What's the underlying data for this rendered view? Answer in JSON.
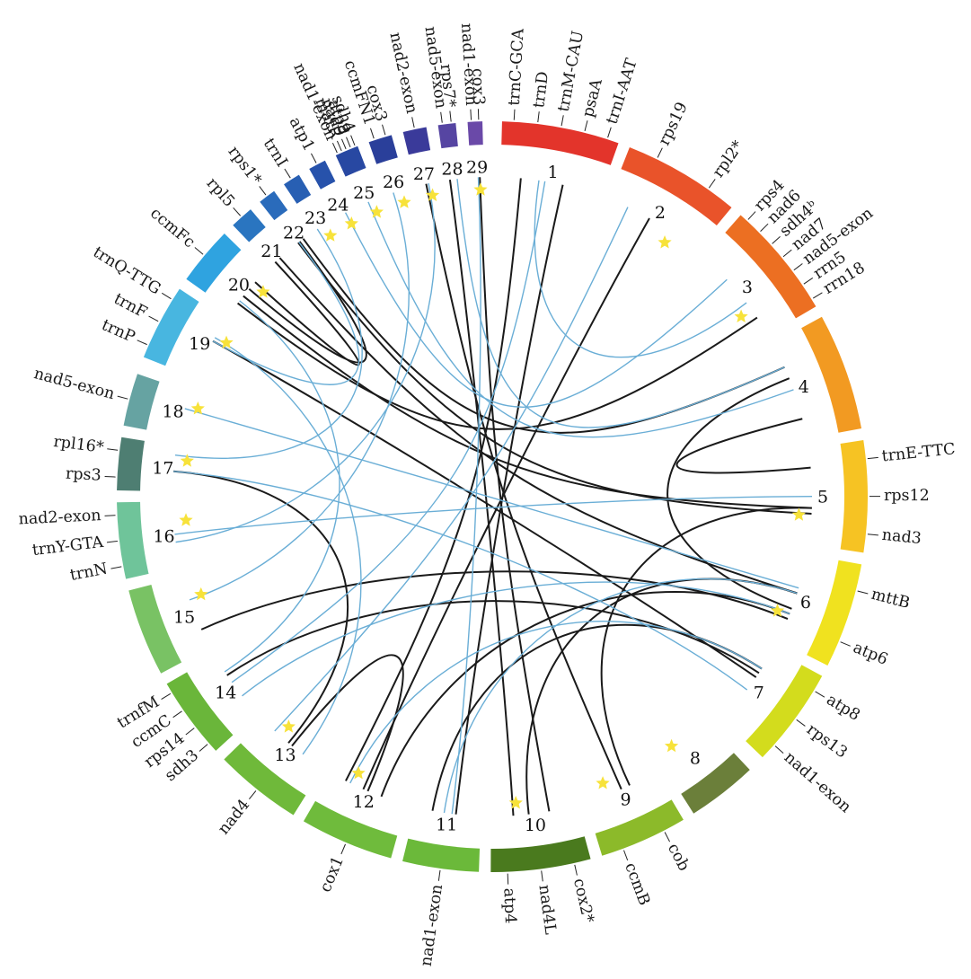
{
  "segments": [
    {
      "num": "1",
      "color": "#e3342b",
      "star": false,
      "genes": [
        {
          "text": "trnC-GCA"
        },
        {
          "text": "trnD"
        },
        {
          "text": "trnM-CAU"
        },
        {
          "text": "psaA"
        },
        {
          "text": "trnI-AAT"
        }
      ]
    },
    {
      "num": "2",
      "color": "#e9532a",
      "star": true,
      "genes": [
        {
          "text": "rps19"
        },
        {
          "text": "rpl2*"
        }
      ]
    },
    {
      "num": "3",
      "color": "#ec6f22",
      "star": true,
      "genes": [
        {
          "text": "rps4"
        },
        {
          "text": "nad6"
        },
        {
          "text": "sdh4ᵇ"
        },
        {
          "text": "nad7"
        },
        {
          "text": "nad5-exon"
        },
        {
          "text": "rrn5"
        },
        {
          "text": "rrn18"
        }
      ]
    },
    {
      "num": "4",
      "color": "#f29a22",
      "star": false,
      "genes": []
    },
    {
      "num": "5",
      "color": "#f6c323",
      "star": true,
      "genes": [
        {
          "text": "trnE-TTC"
        },
        {
          "text": "rps12"
        },
        {
          "text": "nad3"
        }
      ]
    },
    {
      "num": "6",
      "color": "#f0e21f",
      "star": true,
      "genes": [
        {
          "text": "mttB"
        },
        {
          "text": "atp6"
        }
      ]
    },
    {
      "num": "7",
      "color": "#d3dc1d",
      "star": false,
      "genes": [
        {
          "text": "atp8"
        },
        {
          "text": "rps13"
        },
        {
          "text": "nad1-exon"
        }
      ]
    },
    {
      "num": "8",
      "color": "#6b7f3a",
      "star": true,
      "genes": []
    },
    {
      "num": "9",
      "color": "#8cba2a",
      "star": true,
      "genes": [
        {
          "text": "cob"
        },
        {
          "text": "ccmB"
        }
      ]
    },
    {
      "num": "10",
      "color": "#4a7a1e",
      "star": true,
      "genes": [
        {
          "text": "cox2*"
        },
        {
          "text": "nad4L"
        },
        {
          "text": "atp4"
        }
      ]
    },
    {
      "num": "11",
      "color": "#6bb93a",
      "star": false,
      "genes": [
        {
          "text": "nad1-exon"
        }
      ]
    },
    {
      "num": "12",
      "color": "#6fbb3c",
      "star": true,
      "genes": [
        {
          "text": "cox1"
        }
      ]
    },
    {
      "num": "13",
      "color": "#6fb93a",
      "star": true,
      "genes": [
        {
          "text": "nad4"
        }
      ]
    },
    {
      "num": "14",
      "color": "#6ab63a",
      "star": false,
      "genes": [
        {
          "text": "sdh3"
        },
        {
          "text": "rps14"
        },
        {
          "text": "ccmC"
        },
        {
          "text": "trnfM"
        }
      ]
    },
    {
      "num": "15",
      "color": "#79c264",
      "star": true,
      "genes": []
    },
    {
      "num": "16",
      "color": "#6fc49a",
      "star": true,
      "genes": [
        {
          "text": "trnN"
        },
        {
          "text": "trnY-GTA"
        },
        {
          "text": "nad2-exon"
        }
      ]
    },
    {
      "num": "17",
      "color": "#4e7e72",
      "star": true,
      "genes": [
        {
          "text": "rps3"
        },
        {
          "text": "rpl16*"
        }
      ]
    },
    {
      "num": "18",
      "color": "#66a3a2",
      "star": true,
      "genes": [
        {
          "text": "nad5-exon"
        }
      ]
    },
    {
      "num": "19",
      "color": "#48b6e0",
      "star": true,
      "genes": [
        {
          "text": "trnP"
        },
        {
          "text": "trnF"
        },
        {
          "text": "trnQ-TTG"
        }
      ]
    },
    {
      "num": "20",
      "color": "#2fa3e0",
      "star": true,
      "genes": [
        {
          "text": "ccmFc"
        }
      ]
    },
    {
      "num": "21",
      "color": "#2a75c0",
      "star": false,
      "genes": [
        {
          "text": "rpl5"
        }
      ]
    },
    {
      "num": "22",
      "color": "#2a6bbb",
      "star": false,
      "genes": [
        {
          "text": "rps1*"
        }
      ]
    },
    {
      "num": "23",
      "color": "#285fb3",
      "star": true,
      "genes": [
        {
          "text": "trnI"
        }
      ]
    },
    {
      "num": "24",
      "color": "#2752ab",
      "star": true,
      "genes": [
        {
          "text": "atp1"
        }
      ]
    },
    {
      "num": "25",
      "color": "#2848a2",
      "star": true,
      "genes": [
        {
          "text": "nad1-exon"
        },
        {
          "text": "matR"
        },
        {
          "text": "nad9"
        },
        {
          "text": "atp9"
        },
        {
          "text": "sdh4"
        }
      ]
    },
    {
      "num": "26",
      "color": "#2a3f9a",
      "star": true,
      "genes": [
        {
          "text": "ccmFN1"
        },
        {
          "text": "cox3"
        }
      ]
    },
    {
      "num": "27",
      "color": "#3a3a9a",
      "star": true,
      "genes": [
        {
          "text": "nad2-exon"
        }
      ]
    },
    {
      "num": "28",
      "color": "#5645a2",
      "star": false,
      "genes": [
        {
          "text": "nad5-exon"
        },
        {
          "text": "rps7*"
        }
      ]
    },
    {
      "num": "29",
      "color": "#6a49a8",
      "star": true,
      "genes": [
        {
          "text": "nad1-exon"
        },
        {
          "text": "cox3"
        }
      ]
    }
  ],
  "colors": {
    "black_link": "#1a1a1a",
    "blue_link": "#6aaed6",
    "star": "#f7e23a"
  }
}
